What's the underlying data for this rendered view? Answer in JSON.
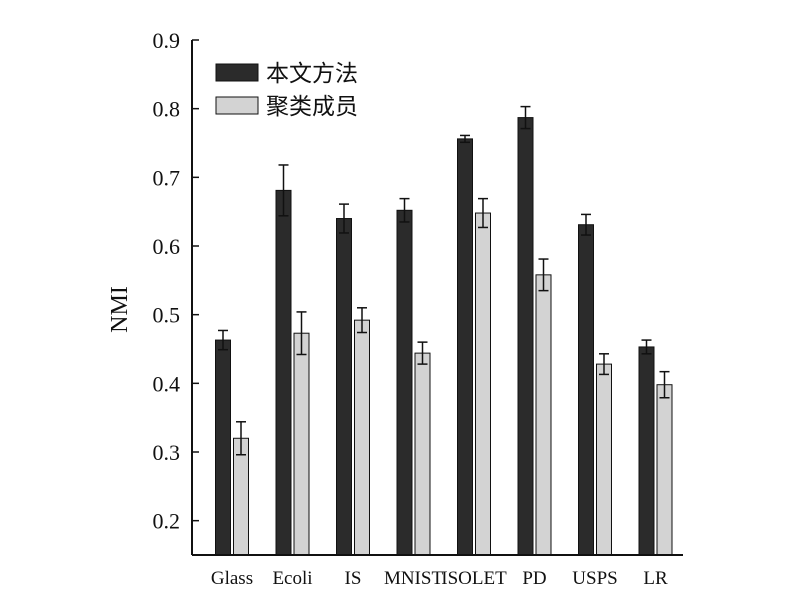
{
  "chart_data": {
    "type": "bar",
    "categories": [
      "Glass",
      "Ecoli",
      "IS",
      "MNIST",
      "ISOLET",
      "PD",
      "USPS",
      "LR"
    ],
    "series": [
      {
        "name": "本文方法",
        "color": "#2b2b2b",
        "values": [
          0.463,
          0.681,
          0.64,
          0.652,
          0.756,
          0.787,
          0.631,
          0.453
        ],
        "errors": [
          0.014,
          0.037,
          0.021,
          0.017,
          0.005,
          0.016,
          0.015,
          0.01
        ]
      },
      {
        "name": "聚类成员",
        "color": "#d3d3d3",
        "values": [
          0.32,
          0.473,
          0.492,
          0.444,
          0.648,
          0.558,
          0.428,
          0.398
        ],
        "errors": [
          0.024,
          0.031,
          0.018,
          0.016,
          0.021,
          0.023,
          0.015,
          0.019
        ]
      }
    ],
    "title": "",
    "xlabel": "",
    "ylabel": "NMI",
    "ylim": [
      0.15,
      0.9
    ],
    "yticks": [
      "0.2",
      "0.3",
      "0.4",
      "0.5",
      "0.6",
      "0.7",
      "0.8",
      "0.9"
    ],
    "grid": false,
    "legend_position": "top-left"
  }
}
